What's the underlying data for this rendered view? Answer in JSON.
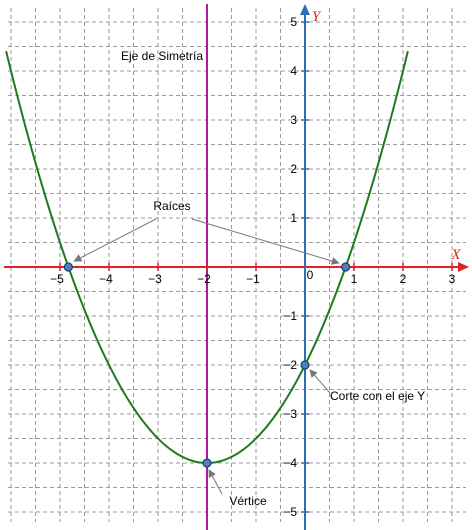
{
  "chart_data": {
    "type": "line",
    "title": "",
    "xlabel": "X",
    "ylabel": "Y",
    "xlim": [
      -6,
      3.3
    ],
    "ylim": [
      -5.3,
      5.3
    ],
    "grid": true,
    "x_ticks": [
      -5,
      -4,
      -3,
      -2,
      -1,
      1,
      2,
      3
    ],
    "y_ticks": [
      -5,
      -4,
      -3,
      -2,
      -1,
      1,
      2,
      3,
      4,
      5
    ],
    "origin_label": "0",
    "series": [
      {
        "function": "y = 0.5x^2 + 2x - 2",
        "x_range": [
          -6.1,
          2.1
        ],
        "x": [
          -6,
          -5,
          -4,
          -3,
          -2,
          -1,
          0,
          1,
          2
        ],
        "values": [
          4,
          0.5,
          -2,
          -3.5,
          -4,
          -3.5,
          -2,
          0.5,
          4
        ]
      }
    ],
    "symmetry_axis": {
      "x": -2,
      "label": "Eje de Simetría"
    },
    "points": [
      {
        "id": "root-left",
        "x": -4.83,
        "y": 0
      },
      {
        "id": "root-right",
        "x": 0.83,
        "y": 0
      },
      {
        "id": "y-intercept",
        "x": 0,
        "y": -2
      },
      {
        "id": "vertex",
        "x": -2,
        "y": -4
      }
    ],
    "annotations": {
      "roots": "Raíces",
      "y_intercept": "Corte con el eje Y",
      "vertex": "Vértice"
    }
  },
  "colors": {
    "curve": "#1f7a1f",
    "x_axis": "#e0202a",
    "y_axis": "#2f6db5",
    "symmetry": "#b0199a",
    "grid": "#9a9a9a",
    "point_fill": "#4d7fbf",
    "point_stroke": "#1d3f6e",
    "leader": "#777777"
  }
}
